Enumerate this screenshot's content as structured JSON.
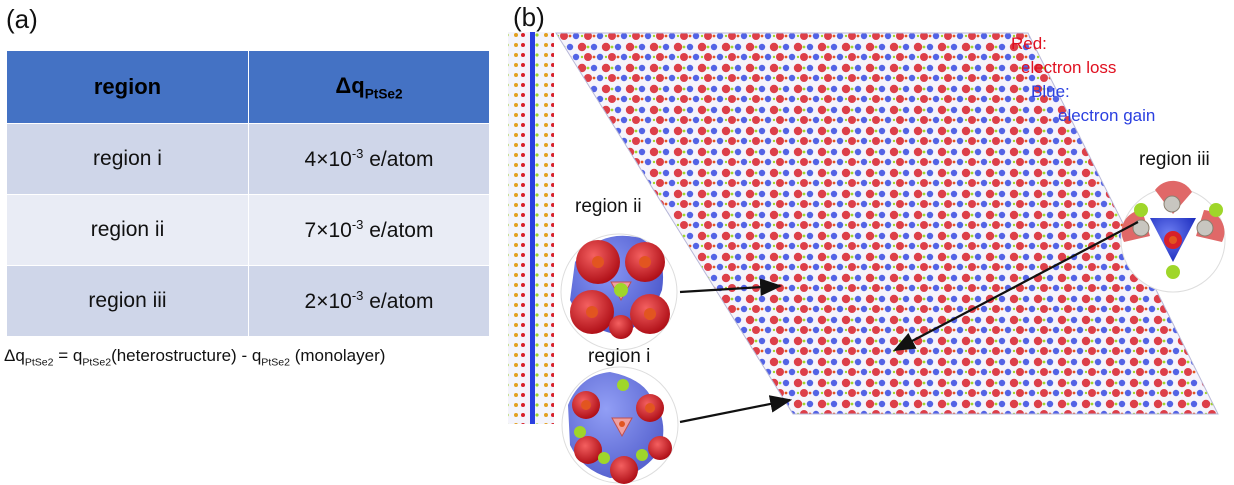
{
  "panel_a": {
    "label": "(a)",
    "table": {
      "headers": {
        "region": "region",
        "dq_symbol": "Δq",
        "dq_subscript": "PtSe2"
      },
      "rows": [
        {
          "region": "region i",
          "mantissa": "4×10",
          "exponent": "-3",
          "unit": " e/atom"
        },
        {
          "region": "region ii",
          "mantissa": "7×10",
          "exponent": "-3",
          "unit": " e/atom"
        },
        {
          "region": "region iii",
          "mantissa": "2×10",
          "exponent": "-3",
          "unit": " e/atom"
        }
      ]
    },
    "formula": {
      "lhs": "Δq",
      "lhs_sub": "PtSe2",
      "eq": " = q",
      "t1_sub": "PtSe2",
      "t1_text": "(heterostructure)  - q",
      "t2_sub": "PtSe2",
      "t2_text": " (monolayer)"
    }
  },
  "panel_b": {
    "label": "(b)",
    "legend": {
      "red_title": "Red:",
      "red_desc": "electron loss",
      "blue_title": "Blue:",
      "blue_desc": "electron gain"
    },
    "regions": {
      "i": "region i",
      "ii": "region ii",
      "iii": "region iii"
    },
    "colors": {
      "loss": "#d8202a",
      "gain": "#2a3fe0",
      "se_atom": "#9fd62a",
      "pt_atom": "#e25520"
    }
  }
}
